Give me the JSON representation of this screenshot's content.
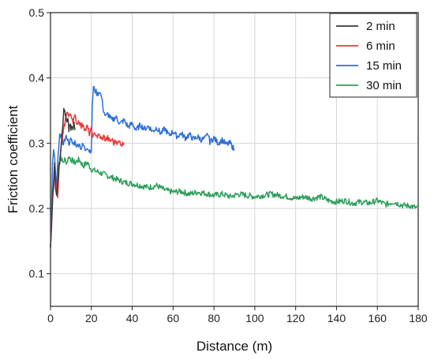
{
  "chart_data": {
    "type": "line",
    "title": "",
    "xlabel": "Distance (m)",
    "ylabel": "Friction coefficient",
    "xlim": [
      0,
      180
    ],
    "ylim": [
      0.05,
      0.5
    ],
    "xticks": [
      0,
      20,
      40,
      60,
      80,
      100,
      120,
      140,
      160,
      180
    ],
    "yticks": [
      0.1,
      0.2,
      0.3,
      0.4,
      0.5
    ],
    "grid": true,
    "legend_position": "top-right",
    "series": [
      {
        "name": "2 min",
        "color": "#3a3a3a",
        "x": [
          0,
          0.5,
          1,
          1.5,
          2,
          2.5,
          3,
          3.5,
          4,
          4.5,
          5,
          5.5,
          6,
          6.5,
          7,
          7.5,
          8,
          8.5,
          9,
          9.5,
          10,
          10.5,
          11,
          11.5,
          12
        ],
        "y": [
          0.14,
          0.17,
          0.21,
          0.24,
          0.27,
          0.23,
          0.22,
          0.24,
          0.26,
          0.27,
          0.29,
          0.31,
          0.33,
          0.35,
          0.35,
          0.34,
          0.33,
          0.335,
          0.32,
          0.33,
          0.32,
          0.325,
          0.32,
          0.33,
          0.32
        ]
      },
      {
        "name": "6 min",
        "color": "#e8393a",
        "x": [
          0,
          0.5,
          1,
          1.5,
          2,
          2.5,
          3,
          3.5,
          4,
          4.5,
          5,
          5.5,
          6,
          6.5,
          7,
          7.5,
          8,
          9,
          10,
          11,
          12,
          13,
          14,
          15,
          16,
          17,
          18,
          19,
          20,
          21,
          22,
          23,
          24,
          25,
          26,
          27,
          28,
          29,
          30,
          31,
          32,
          33,
          34,
          35,
          36
        ],
        "y": [
          0.14,
          0.18,
          0.22,
          0.23,
          0.25,
          0.24,
          0.23,
          0.22,
          0.25,
          0.27,
          0.29,
          0.3,
          0.31,
          0.32,
          0.33,
          0.34,
          0.35,
          0.34,
          0.345,
          0.335,
          0.34,
          0.33,
          0.335,
          0.325,
          0.33,
          0.32,
          0.325,
          0.315,
          0.32,
          0.31,
          0.315,
          0.31,
          0.312,
          0.305,
          0.31,
          0.305,
          0.308,
          0.302,
          0.306,
          0.3,
          0.304,
          0.3,
          0.302,
          0.298,
          0.3
        ]
      },
      {
        "name": "15 min",
        "color": "#2f6fd4",
        "x": [
          0,
          0.5,
          1,
          1.5,
          2,
          2.5,
          3,
          3.5,
          4,
          4.5,
          5,
          5.5,
          6,
          7,
          8,
          9,
          10,
          11,
          12,
          13,
          14,
          15,
          16,
          17,
          18,
          19,
          20,
          20.5,
          21,
          22,
          23,
          24,
          25,
          26,
          27,
          28,
          30,
          32,
          34,
          36,
          38,
          40,
          42,
          44,
          46,
          48,
          50,
          52,
          54,
          56,
          58,
          60,
          62,
          64,
          66,
          68,
          70,
          72,
          74,
          76,
          77,
          78,
          80,
          82,
          84,
          86,
          88,
          90
        ],
        "y": [
          0.14,
          0.2,
          0.27,
          0.29,
          0.28,
          0.25,
          0.23,
          0.27,
          0.29,
          0.31,
          0.315,
          0.31,
          0.3,
          0.305,
          0.31,
          0.3,
          0.305,
          0.298,
          0.302,
          0.295,
          0.3,
          0.292,
          0.298,
          0.29,
          0.295,
          0.288,
          0.29,
          0.36,
          0.385,
          0.38,
          0.375,
          0.38,
          0.37,
          0.35,
          0.34,
          0.345,
          0.335,
          0.34,
          0.33,
          0.335,
          0.325,
          0.33,
          0.32,
          0.328,
          0.322,
          0.326,
          0.318,
          0.324,
          0.315,
          0.322,
          0.312,
          0.318,
          0.31,
          0.315,
          0.308,
          0.313,
          0.306,
          0.31,
          0.305,
          0.308,
          0.315,
          0.302,
          0.308,
          0.3,
          0.305,
          0.298,
          0.3,
          0.29
        ]
      },
      {
        "name": "30 min",
        "color": "#2e9e5b",
        "x": [
          0,
          1,
          2,
          3,
          4,
          5,
          6,
          7,
          8,
          9,
          10,
          12,
          14,
          16,
          18,
          20,
          24,
          28,
          32,
          36,
          40,
          44,
          48,
          52,
          56,
          60,
          64,
          68,
          72,
          76,
          80,
          84,
          88,
          92,
          96,
          100,
          104,
          108,
          112,
          116,
          120,
          124,
          128,
          132,
          136,
          140,
          144,
          148,
          152,
          156,
          160,
          164,
          168,
          172,
          176,
          180
        ],
        "y": [
          0.14,
          0.22,
          0.25,
          0.24,
          0.27,
          0.28,
          0.27,
          0.275,
          0.27,
          0.28,
          0.275,
          0.27,
          0.275,
          0.265,
          0.27,
          0.26,
          0.255,
          0.25,
          0.245,
          0.24,
          0.238,
          0.235,
          0.232,
          0.235,
          0.228,
          0.225,
          0.226,
          0.222,
          0.225,
          0.223,
          0.22,
          0.222,
          0.218,
          0.222,
          0.22,
          0.218,
          0.22,
          0.222,
          0.22,
          0.218,
          0.215,
          0.218,
          0.215,
          0.218,
          0.212,
          0.21,
          0.212,
          0.208,
          0.21,
          0.208,
          0.212,
          0.206,
          0.21,
          0.205,
          0.204,
          0.2
        ]
      }
    ]
  }
}
